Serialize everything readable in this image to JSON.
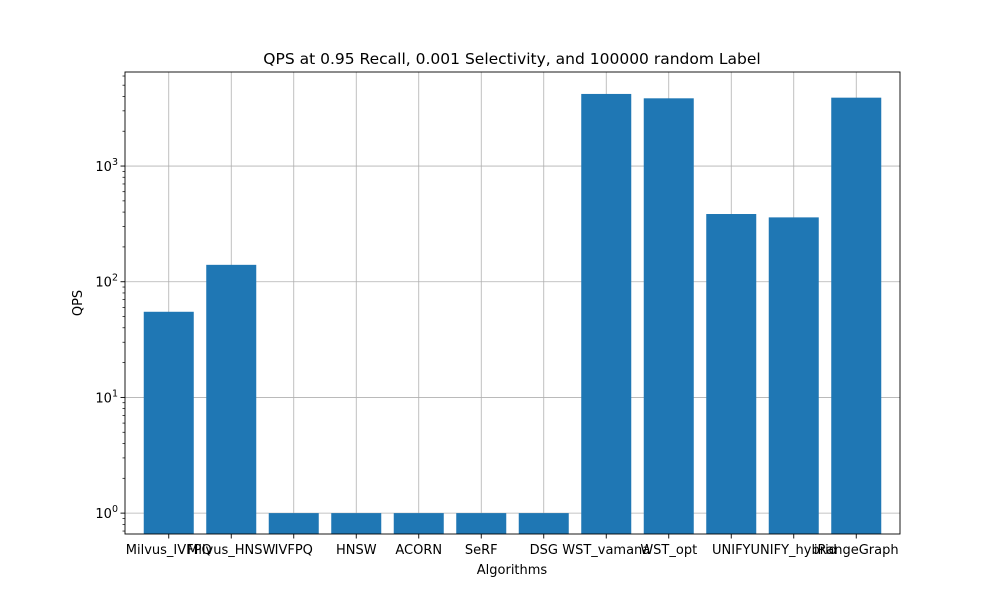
{
  "chart_data": {
    "type": "bar",
    "title": "QPS at 0.95 Recall, 0.001 Selectivity, and 100000 random Label",
    "xlabel": "Algorithms",
    "ylabel": "QPS",
    "yscale": "log",
    "ylim": [
      0.66,
      6500
    ],
    "yticks": [
      1,
      10,
      100,
      1000
    ],
    "ytick_base": "10",
    "ytick_exponents": [
      "0",
      "1",
      "2",
      "3"
    ],
    "grid": true,
    "bar_color": "#1f77b4",
    "categories": [
      "Milvus_IVFPQ",
      "Milvus_HNSW",
      "IVFPQ",
      "HNSW",
      "ACORN",
      "SeRF",
      "DSG",
      "WST_vamana",
      "WST_opt",
      "UNIFY",
      "UNIFY_hybrid",
      "iRangeGraph"
    ],
    "values": [
      55,
      140,
      1,
      1,
      1,
      1,
      1,
      4200,
      3850,
      385,
      360,
      3900
    ]
  }
}
